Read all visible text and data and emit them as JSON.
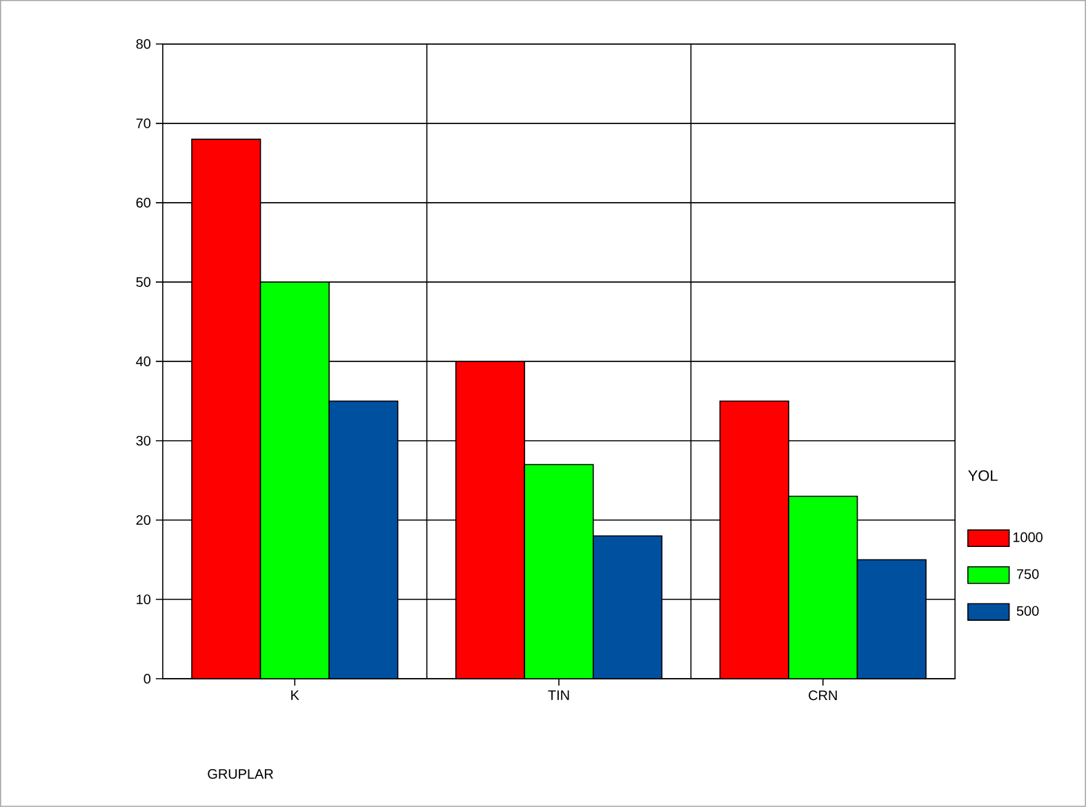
{
  "chart_data": {
    "type": "bar",
    "categories": [
      "K",
      "TIN",
      "CRN"
    ],
    "annotations": [
      "GRUPLAR"
    ],
    "legend_title": "YOL",
    "series": [
      {
        "name": "1000",
        "color": "#ff0000",
        "values": [
          68,
          40,
          35
        ]
      },
      {
        "name": "750",
        "color": "#00ff00",
        "values": [
          50,
          27,
          23
        ]
      },
      {
        "name": "500",
        "color": "#0050a0",
        "values": [
          35,
          18,
          15
        ]
      }
    ],
    "ylim": [
      0,
      80
    ],
    "yticks": [
      0,
      10,
      20,
      30,
      40,
      50,
      60,
      70,
      80
    ],
    "grid": true,
    "legend": "right"
  }
}
